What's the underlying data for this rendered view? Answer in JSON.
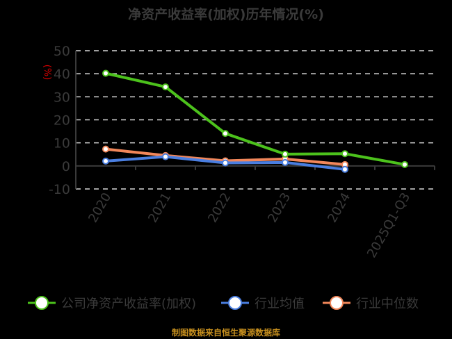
{
  "title": "净资产收益率(加权)历年情况(%)",
  "y_unit": "(%)",
  "footer": "制图数据来自恒生聚源数据库",
  "colors": {
    "company": "#4cc21c",
    "industry_avg": "#4a7ee0",
    "industry_median": "#f2875a",
    "axis": "#3a3a3a",
    "grid": "#d8d8d8",
    "unit": "#e00000"
  },
  "chart_data": {
    "type": "line",
    "title": "净资产收益率(加权)历年情况(%)",
    "xlabel": "",
    "ylabel": "(%)",
    "categories": [
      "2020",
      "2021",
      "2022",
      "2023",
      "2024",
      "2025Q1-Q3"
    ],
    "yticks": [
      50,
      40,
      30,
      20,
      10,
      0,
      -10
    ],
    "ylim": [
      -10,
      50
    ],
    "grid": true,
    "legend_position": "bottom",
    "series": [
      {
        "name": "公司净资产收益率(加权)",
        "values": [
          40.2,
          34.3,
          14.1,
          5.1,
          5.3,
          0.6
        ]
      },
      {
        "name": "行业均值",
        "values": [
          2.1,
          4.0,
          1.3,
          1.5,
          -1.5,
          null
        ]
      },
      {
        "name": "行业中位数",
        "values": [
          7.3,
          4.5,
          2.2,
          3.0,
          0.6,
          null
        ]
      }
    ]
  },
  "legend": [
    {
      "label": "公司净资产收益率(加权)"
    },
    {
      "label": "行业均值"
    },
    {
      "label": "行业中位数"
    }
  ]
}
